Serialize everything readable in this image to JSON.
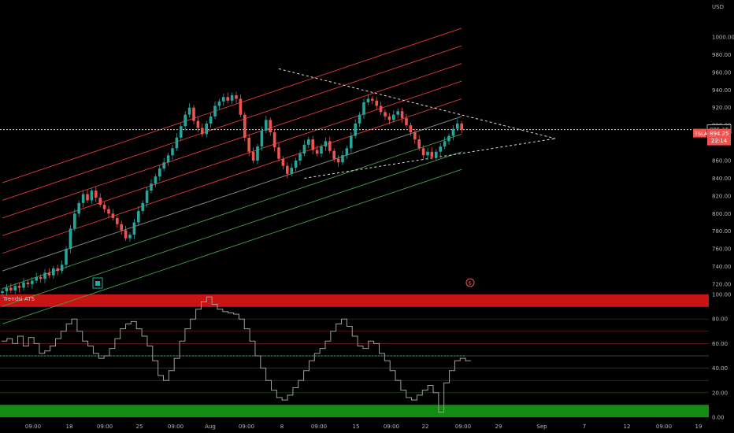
{
  "header": {
    "currency_label": "USD"
  },
  "indicator": {
    "title": "Trendsi ATS"
  },
  "price_tags": {
    "reference_price": "895.15",
    "symbol": "TSLA",
    "last_price": "894.25",
    "countdown": "22:14"
  },
  "colors": {
    "up": "#26a69a",
    "down": "#ef5350",
    "channel_upper": "#e53935",
    "channel_lower": "#43a047",
    "overbought_band": "#c81414",
    "oversold_band": "#128c12",
    "oscillator_line": "#9e9e9e"
  },
  "chart_data": [
    {
      "type": "candlestick",
      "name": "price",
      "y_unit": "USD",
      "ylim": [
        712,
        1010
      ],
      "y_ticks": [
        720,
        740,
        760,
        780,
        800,
        820,
        840,
        860,
        880,
        900,
        920,
        940,
        960,
        980,
        1000
      ],
      "y_tick_labels": [
        "720.00",
        "740.00",
        "760.00",
        "780.00",
        "800.00",
        "820.00",
        "840.00",
        "860.00",
        "880.00",
        "900.00",
        "920.00",
        "940.00",
        "960.00",
        "980.00",
        "1000.00"
      ],
      "closes": [
        712,
        716,
        713,
        718,
        716,
        722,
        720,
        724,
        728,
        726,
        733,
        730,
        738,
        735,
        742,
        760,
        783,
        800,
        812,
        822,
        815,
        826,
        818,
        810,
        805,
        800,
        795,
        788,
        781,
        772,
        776,
        790,
        803,
        812,
        826,
        834,
        842,
        851,
        858,
        866,
        874,
        886,
        899,
        912,
        920,
        905,
        897,
        890,
        902,
        910,
        922,
        927,
        932,
        928,
        934,
        930,
        912,
        886,
        870,
        860,
        876,
        894,
        906,
        892,
        875,
        862,
        854,
        845,
        852,
        860,
        868,
        878,
        884,
        872,
        868,
        876,
        882,
        871,
        862,
        858,
        866,
        874,
        888,
        902,
        912,
        926,
        930,
        928,
        922,
        915,
        910,
        906,
        912,
        916,
        908,
        900,
        892,
        884,
        874,
        866,
        870,
        864,
        870,
        876,
        882,
        888,
        896,
        902,
        895
      ],
      "current_price": 894.25,
      "reference_line": 895.15,
      "channel_lines": [
        {
          "color": "up",
          "from": [
            0,
            835
          ],
          "to": [
            108,
            1010
          ]
        },
        {
          "color": "up",
          "from": [
            0,
            815
          ],
          "to": [
            108,
            990
          ]
        },
        {
          "color": "up",
          "from": [
            0,
            795
          ],
          "to": [
            108,
            970
          ]
        },
        {
          "color": "up",
          "from": [
            0,
            775
          ],
          "to": [
            108,
            950
          ]
        },
        {
          "color": "up",
          "from": [
            0,
            755
          ],
          "to": [
            108,
            930
          ]
        },
        {
          "color": "mid",
          "from": [
            0,
            735
          ],
          "to": [
            108,
            910
          ]
        },
        {
          "color": "low",
          "from": [
            0,
            715
          ],
          "to": [
            108,
            890
          ]
        },
        {
          "color": "low",
          "from": [
            0,
            695
          ],
          "to": [
            108,
            870
          ]
        },
        {
          "color": "low",
          "from": [
            0,
            675
          ],
          "to": [
            108,
            850
          ]
        }
      ],
      "triangle_upper": {
        "from": [
          65,
          964
        ],
        "to": [
          130,
          885
        ]
      },
      "triangle_lower": {
        "from": [
          71,
          840
        ],
        "to": [
          130,
          885
        ]
      }
    },
    {
      "type": "line",
      "name": "Trendsi ATS",
      "ylim": [
        0,
        100
      ],
      "y_ticks": [
        0,
        20,
        40,
        60,
        80,
        100
      ],
      "y_tick_labels": [
        "0.00",
        "20.00",
        "40.00",
        "60.00",
        "80.00",
        "100.00"
      ],
      "bands": {
        "overbought": [
          90,
          100
        ],
        "oversold": [
          0,
          10
        ]
      },
      "reference_lines": [
        10,
        20,
        30,
        40,
        50,
        60,
        70,
        80,
        90
      ],
      "midline": 50,
      "values": [
        62,
        64,
        60,
        66,
        58,
        65,
        60,
        52,
        54,
        58,
        64,
        70,
        76,
        80,
        70,
        62,
        58,
        52,
        48,
        50,
        56,
        64,
        72,
        76,
        78,
        72,
        66,
        58,
        46,
        34,
        30,
        38,
        48,
        62,
        72,
        80,
        88,
        94,
        98,
        92,
        88,
        86,
        85,
        84,
        80,
        72,
        62,
        50,
        40,
        30,
        22,
        16,
        14,
        18,
        24,
        30,
        38,
        46,
        52,
        56,
        62,
        70,
        76,
        80,
        74,
        66,
        58,
        56,
        62,
        60,
        52,
        46,
        38,
        30,
        22,
        16,
        14,
        18,
        22,
        26,
        20,
        4,
        28,
        38,
        46,
        48,
        46
      ]
    }
  ],
  "x_axis": {
    "labels": [
      "09:00",
      "18",
      "09:00",
      "25",
      "09:00",
      "Aug",
      "09:00",
      "8",
      "09:00",
      "15",
      "09:00",
      "22",
      "09:00",
      "29",
      "Sep",
      "7",
      "12",
      "09:00",
      "19"
    ]
  }
}
